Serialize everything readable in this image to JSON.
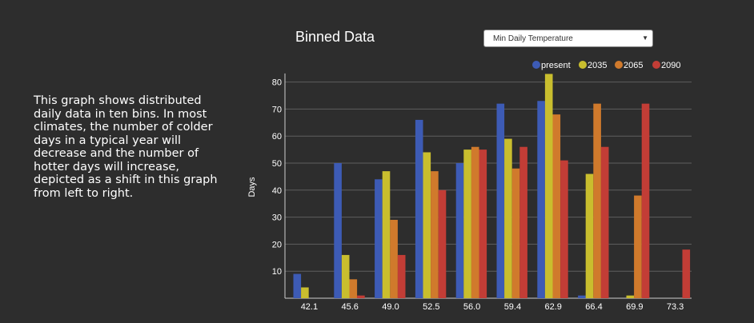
{
  "description": "This graph shows distributed daily data in ten bins. In most climates, the number of colder days in a typical year will decrease and the number of hotter days will increase, depicted as a shift in this graph from left to right.",
  "selector": {
    "selected": "Min Daily Temperature"
  },
  "chart_data": {
    "type": "bar",
    "title": "Binned Data",
    "xlabel": "",
    "ylabel": "Days",
    "ylim": [
      0,
      82
    ],
    "yticks": [
      10,
      20,
      30,
      40,
      50,
      60,
      70,
      80
    ],
    "grid": true,
    "legend_position": "top-right",
    "categories": [
      "42.1",
      "45.6",
      "49.0",
      "52.5",
      "56.0",
      "59.4",
      "62.9",
      "66.4",
      "69.9",
      "73.3"
    ],
    "series": [
      {
        "name": "present",
        "color": "#3d5bb5",
        "values": [
          9,
          50,
          44,
          66,
          50,
          72,
          73,
          1,
          0,
          0
        ]
      },
      {
        "name": "2035",
        "color": "#c9be2e",
        "values": [
          4,
          16,
          47,
          54,
          55,
          59,
          83,
          46,
          1,
          0
        ]
      },
      {
        "name": "2065",
        "color": "#d07a2c",
        "values": [
          0,
          7,
          29,
          47,
          56,
          48,
          68,
          72,
          38,
          0
        ]
      },
      {
        "name": "2090",
        "color": "#c23d36",
        "values": [
          0,
          1,
          16,
          40,
          55,
          56,
          51,
          56,
          72,
          18
        ]
      }
    ]
  }
}
